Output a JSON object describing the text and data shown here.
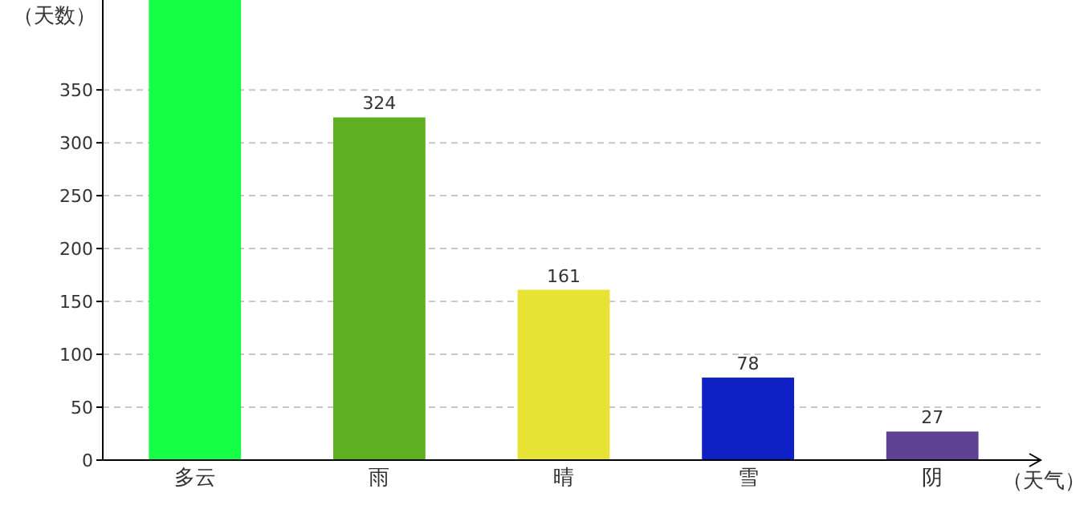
{
  "chart_data": {
    "type": "bar",
    "ylabel": "（天数）",
    "xlabel": "（天气）",
    "categories": [
      "多云",
      "雨",
      "晴",
      "雪",
      "阴"
    ],
    "values": [
      435,
      324,
      161,
      78,
      27
    ],
    "colors": [
      "#14ff46",
      "#5eaf22",
      "#e8e234",
      "#0f21c4",
      "#5e4193"
    ],
    "value_labels": [
      null,
      "324",
      "161",
      "78",
      "27"
    ],
    "ylim": [
      0,
      435
    ],
    "yticks": [
      0,
      50,
      100,
      150,
      200,
      250,
      300,
      350
    ],
    "grid": "y"
  }
}
